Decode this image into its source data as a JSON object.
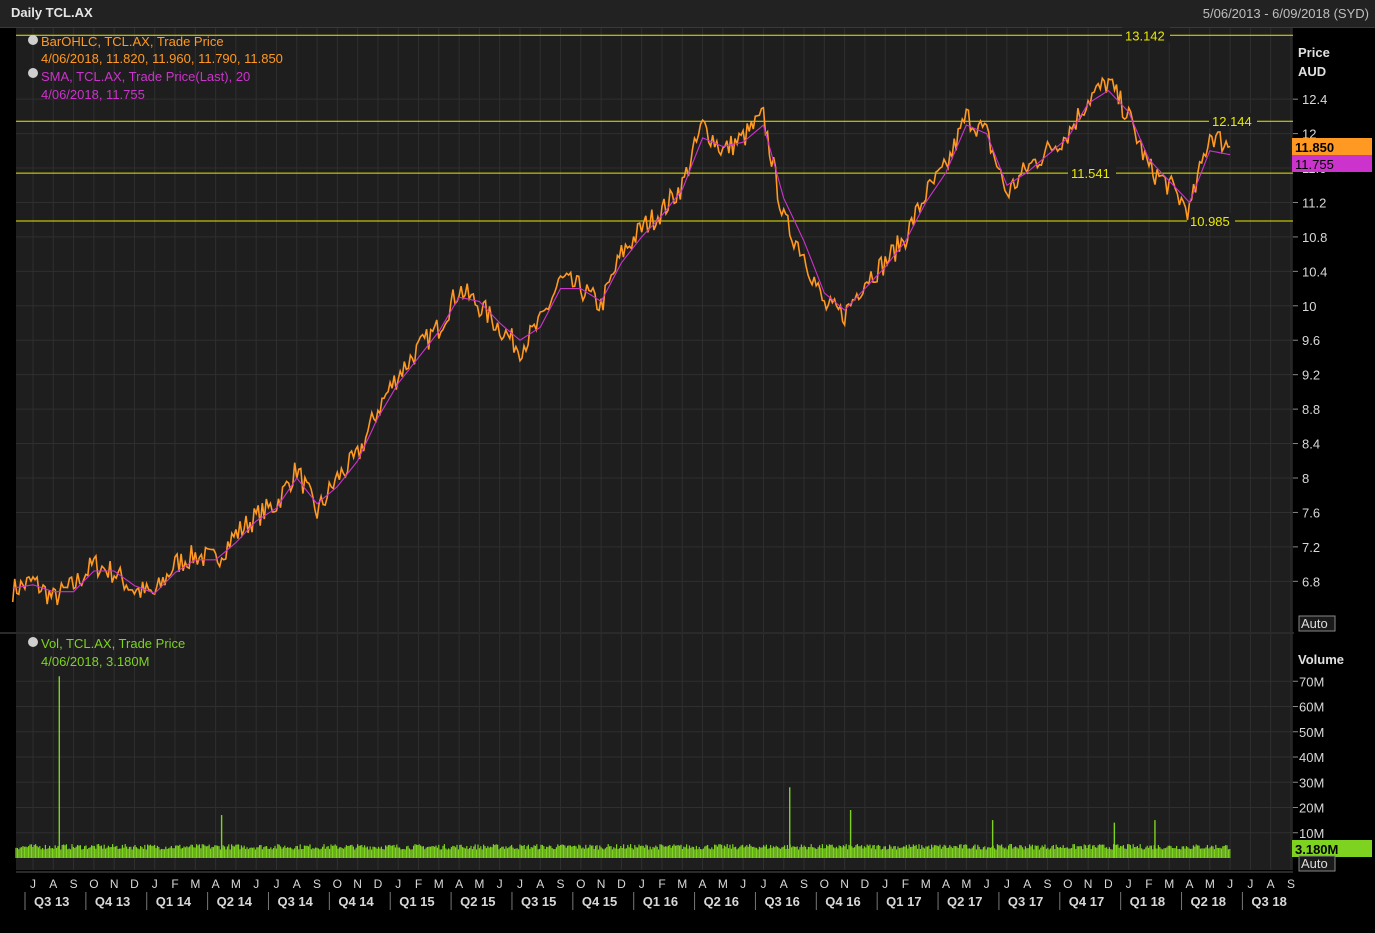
{
  "window": {
    "title": "Daily TCL.AX",
    "date_range": "5/06/2013 - 6/09/2018 (SYD)"
  },
  "price_panel": {
    "legend": [
      {
        "label": "BarOHLC, TCL.AX, Trade Price",
        "value": "4/06/2018, 11.820, 11.960, 11.790, 11.850",
        "color": "#ff9922"
      },
      {
        "label": "SMA, TCL.AX, Trade Price(Last),  20",
        "value": "4/06/2018, 11.755",
        "color": "#cc33cc"
      }
    ],
    "axis_title_1": "Price",
    "axis_title_2": "AUD",
    "last_price_tag": "11.850",
    "sma_tag": "11.755",
    "scale_button": "Auto"
  },
  "volume_panel": {
    "legend_label": "Vol, TCL.AX, Trade Price",
    "legend_value": "4/06/2018, 3.180M",
    "legend_color": "#7ed321",
    "axis_title": "Volume",
    "last_volume_tag": "3.180M",
    "scale_button": "Auto"
  },
  "chart_data": [
    {
      "type": "line",
      "title": "Daily TCL.AX",
      "xlabel": "",
      "ylabel": "Price AUD",
      "ylim": [
        6.2,
        13.3
      ],
      "yticks": [
        "6.8",
        "7.2",
        "7.6",
        "8",
        "8.4",
        "8.8",
        "9.2",
        "9.6",
        "10",
        "10.4",
        "10.8",
        "11.2",
        "11.6",
        "12",
        "12.4"
      ],
      "grid": true,
      "horizontal_lines": [
        {
          "value": 13.142,
          "label": "13.142"
        },
        {
          "value": 12.144,
          "label": "12.144"
        },
        {
          "value": 11.541,
          "label": "11.541"
        },
        {
          "value": 10.985,
          "label": "10.985"
        }
      ],
      "series": [
        {
          "name": "BarOHLC, TCL.AX, Trade Price",
          "color": "#ff9922",
          "x": [
            "2013-06",
            "2013-07",
            "2013-08",
            "2013-09",
            "2013-10",
            "2013-11",
            "2013-12",
            "2014-01",
            "2014-02",
            "2014-03",
            "2014-04",
            "2014-05",
            "2014-06",
            "2014-07",
            "2014-08",
            "2014-09",
            "2014-10",
            "2014-11",
            "2014-12",
            "2015-01",
            "2015-02",
            "2015-03",
            "2015-04",
            "2015-05",
            "2015-06",
            "2015-07",
            "2015-08",
            "2015-09",
            "2015-10",
            "2015-11",
            "2015-12",
            "2016-01",
            "2016-02",
            "2016-03",
            "2016-04",
            "2016-05",
            "2016-06",
            "2016-07",
            "2016-08",
            "2016-09",
            "2016-10",
            "2016-11",
            "2016-12",
            "2017-01",
            "2017-02",
            "2017-03",
            "2017-04",
            "2017-05",
            "2017-06",
            "2017-07",
            "2017-08",
            "2017-09",
            "2017-10",
            "2017-11",
            "2017-12",
            "2018-01",
            "2018-02",
            "2018-03",
            "2018-04",
            "2018-05",
            "2018-06"
          ],
          "values": [
            6.7,
            6.8,
            6.6,
            6.75,
            7.0,
            6.9,
            6.7,
            6.65,
            7.0,
            7.1,
            7.05,
            7.35,
            7.55,
            7.7,
            8.1,
            7.6,
            8.0,
            8.25,
            8.8,
            9.2,
            9.5,
            9.75,
            10.2,
            10.0,
            9.75,
            9.5,
            9.8,
            10.3,
            10.2,
            10.0,
            10.6,
            10.9,
            11.1,
            11.4,
            12.1,
            11.8,
            11.95,
            12.2,
            11.0,
            10.6,
            10.0,
            9.9,
            10.3,
            10.5,
            10.8,
            11.3,
            11.6,
            12.2,
            12.0,
            11.3,
            11.6,
            11.8,
            12.0,
            12.4,
            12.6,
            12.2,
            11.6,
            11.4,
            11.1,
            12.0,
            11.85
          ]
        },
        {
          "name": "SMA, TCL.AX, Trade Price(Last),  20",
          "color": "#cc33cc",
          "x": [
            "2013-06",
            "2013-07",
            "2013-08",
            "2013-09",
            "2013-10",
            "2013-11",
            "2013-12",
            "2014-01",
            "2014-02",
            "2014-03",
            "2014-04",
            "2014-05",
            "2014-06",
            "2014-07",
            "2014-08",
            "2014-09",
            "2014-10",
            "2014-11",
            "2014-12",
            "2015-01",
            "2015-02",
            "2015-03",
            "2015-04",
            "2015-05",
            "2015-06",
            "2015-07",
            "2015-08",
            "2015-09",
            "2015-10",
            "2015-11",
            "2015-12",
            "2016-01",
            "2016-02",
            "2016-03",
            "2016-04",
            "2016-05",
            "2016-06",
            "2016-07",
            "2016-08",
            "2016-09",
            "2016-10",
            "2016-11",
            "2016-12",
            "2017-01",
            "2017-02",
            "2017-03",
            "2017-04",
            "2017-05",
            "2017-06",
            "2017-07",
            "2017-08",
            "2017-09",
            "2017-10",
            "2017-11",
            "2017-12",
            "2018-01",
            "2018-02",
            "2018-03",
            "2018-04",
            "2018-05",
            "2018-06"
          ],
          "values": [
            6.72,
            6.76,
            6.68,
            6.68,
            6.92,
            6.92,
            6.75,
            6.66,
            6.9,
            7.05,
            7.05,
            7.25,
            7.5,
            7.65,
            8.0,
            7.7,
            7.9,
            8.2,
            8.7,
            9.1,
            9.4,
            9.7,
            10.1,
            10.05,
            9.8,
            9.6,
            9.75,
            10.2,
            10.2,
            10.05,
            10.5,
            10.8,
            11.05,
            11.35,
            11.95,
            11.85,
            11.9,
            12.1,
            11.25,
            10.75,
            10.15,
            9.95,
            10.2,
            10.45,
            10.75,
            11.2,
            11.55,
            12.1,
            12.0,
            11.4,
            11.55,
            11.75,
            11.95,
            12.35,
            12.5,
            12.25,
            11.7,
            11.45,
            11.2,
            11.8,
            11.755
          ]
        }
      ]
    },
    {
      "type": "bar",
      "title": "Vol, TCL.AX, Trade Price",
      "ylabel": "Volume",
      "ylim": [
        0,
        75
      ],
      "unit": "M",
      "yticks": [
        "10M",
        "20M",
        "30M",
        "40M",
        "50M",
        "60M",
        "70M"
      ],
      "grid": true,
      "series": [
        {
          "name": "Vol, TCL.AX, Trade Price",
          "color": "#7ed321",
          "baseline": 4.0,
          "spikes": [
            {
              "x": "2013-08",
              "value": 72
            },
            {
              "x": "2014-04",
              "value": 17
            },
            {
              "x": "2016-08",
              "value": 28
            },
            {
              "x": "2016-11",
              "value": 19
            },
            {
              "x": "2017-06",
              "value": 15
            },
            {
              "x": "2017-12",
              "value": 14
            },
            {
              "x": "2018-02",
              "value": 15
            }
          ]
        }
      ]
    }
  ],
  "time_axis": {
    "months": [
      "J",
      "A",
      "S",
      "O",
      "N",
      "D",
      "J",
      "F",
      "M",
      "A",
      "M",
      "J",
      "J",
      "A",
      "S",
      "O",
      "N",
      "D",
      "J",
      "F",
      "M",
      "A",
      "M",
      "J",
      "J",
      "A",
      "S",
      "O",
      "N",
      "D",
      "J",
      "F",
      "M",
      "A",
      "M",
      "J",
      "J",
      "A",
      "S",
      "O",
      "N",
      "D",
      "J",
      "F",
      "M",
      "A",
      "M",
      "J",
      "J",
      "A",
      "S",
      "O",
      "N",
      "D",
      "J",
      "F",
      "M",
      "A",
      "M",
      "J",
      "J",
      "A",
      "S"
    ],
    "quarters": [
      "Q3 13",
      "Q4 13",
      "Q1 14",
      "Q2 14",
      "Q3 14",
      "Q4 14",
      "Q1 15",
      "Q2 15",
      "Q3 15",
      "Q4 15",
      "Q1 16",
      "Q2 16",
      "Q3 16",
      "Q4 16",
      "Q1 17",
      "Q2 17",
      "Q3 17",
      "Q4 17",
      "Q1 18",
      "Q2 18",
      "Q3 18"
    ]
  }
}
